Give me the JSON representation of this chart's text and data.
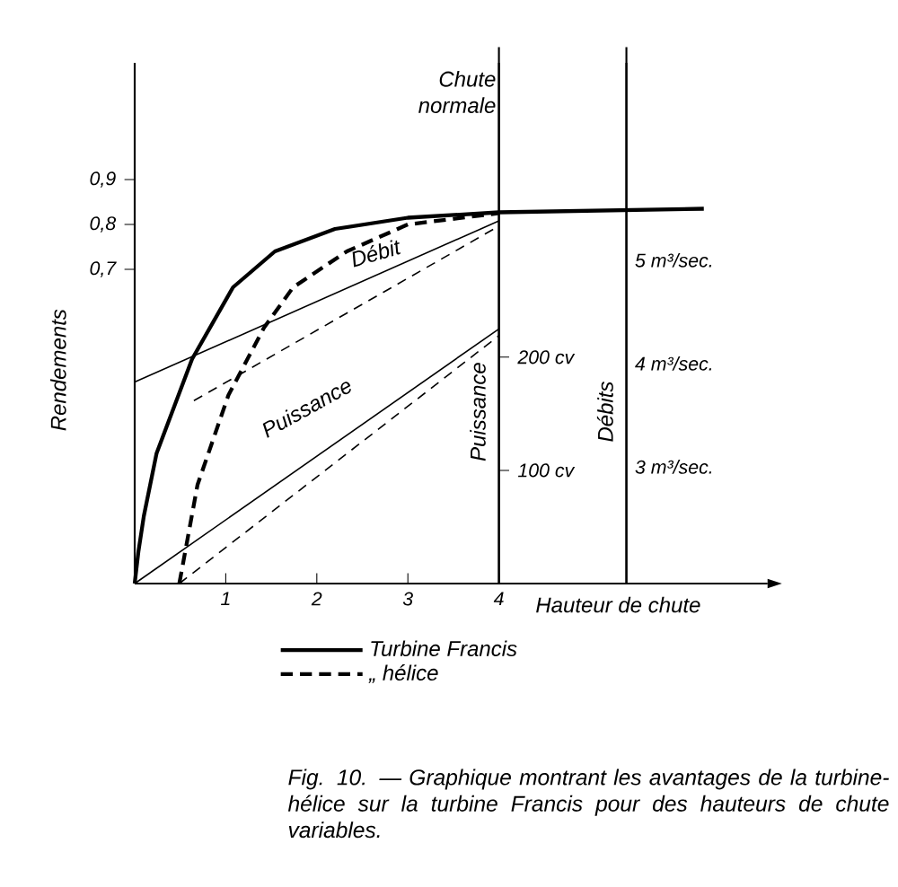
{
  "chart_data": {
    "type": "line",
    "xlabel": "Hauteur de chute",
    "ylabel": "Rendements",
    "y2label": "Puissance",
    "y3label": "Débits",
    "xlim": [
      0,
      6.95
    ],
    "xticks": [
      1,
      2,
      3,
      4
    ],
    "ylim": [
      0,
      1.16
    ],
    "yticks": [
      {
        "value": 0.7,
        "label": "0,7"
      },
      {
        "value": 0.8,
        "label": "0,8"
      },
      {
        "value": 0.9,
        "label": "0,9"
      }
    ],
    "y2lim": [
      0,
      460
    ],
    "y2ticks": [
      {
        "value": 100,
        "label": "100 cv"
      },
      {
        "value": 200,
        "label": "200 cv"
      }
    ],
    "y3lim": [
      1.87,
      6.91
    ],
    "y3ticks": [
      {
        "value": 3,
        "label": "3 m³/sec."
      },
      {
        "value": 4,
        "label": "4 m³/sec."
      },
      {
        "value": 5,
        "label": "5 m³/sec."
      }
    ],
    "legend": "bottom",
    "grid": false,
    "series": [
      {
        "name": "Turbine Francis",
        "color": "#000000",
        "line_style": "solid",
        "x": [
          0,
          0.04,
          0.1,
          0.24,
          0.63,
          1.08,
          1.54,
          2.2,
          3.0,
          4.0,
          6.25
        ],
        "values": [
          0,
          0.07,
          0.15,
          0.29,
          0.5,
          0.66,
          0.74,
          0.79,
          0.815,
          0.827,
          0.835
        ]
      },
      {
        "name": "„ hélice",
        "color": "#000000",
        "line_style": "dashed",
        "x": [
          0.49,
          0.69,
          1.03,
          1.42,
          1.74,
          2.33,
          3.0,
          4.0
        ],
        "values": [
          0,
          0.22,
          0.42,
          0.57,
          0.66,
          0.74,
          0.8,
          0.825
        ]
      },
      {
        "color": "#000000",
        "line_style": "solid",
        "axis": "y3",
        "x": [
          0,
          4
        ],
        "values": [
          3.82,
          5.38
        ]
      },
      {
        "color": "#000000",
        "line_style": "dashed",
        "axis": "y3",
        "x": [
          0.65,
          4
        ],
        "values": [
          3.64,
          5.33
        ]
      },
      {
        "color": "#000000",
        "line_style": "solid",
        "axis": "y2",
        "x": [
          0,
          4
        ],
        "values": [
          0,
          225
        ]
      },
      {
        "color": "#000000",
        "line_style": "dashed",
        "axis": "y2",
        "x": [
          0.49,
          4
        ],
        "values": [
          0,
          219
        ]
      }
    ],
    "ref_lines": [
      {
        "axis": "x",
        "value": 4,
        "label": "Chute normale"
      },
      {
        "axis": "x",
        "value": 5.4
      }
    ],
    "annotations": [
      "Débit",
      "Puissance",
      "Fig. 10. — Graphique montrant les avantages de la turbine-hélice sur la turbine Francis pour des hauteurs de chute variables."
    ]
  }
}
